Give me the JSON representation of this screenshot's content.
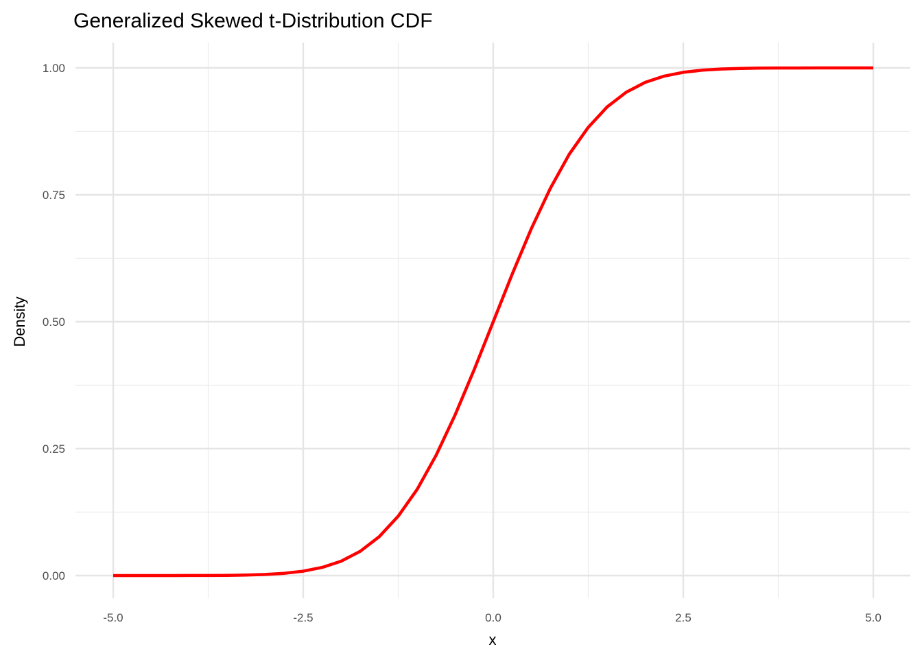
{
  "chart_data": {
    "type": "line",
    "title": "Generalized Skewed t-Distribution CDF",
    "xlabel": "x",
    "ylabel": "Density",
    "xlim": [
      -5,
      5
    ],
    "ylim": [
      0,
      1
    ],
    "x_ticks": [
      -5.0,
      -2.5,
      0.0,
      2.5,
      5.0
    ],
    "x_tick_labels": [
      "-5.0",
      "-2.5",
      "0.0",
      "2.5",
      "5.0"
    ],
    "y_ticks": [
      0,
      0.25,
      0.5,
      0.75,
      1.0
    ],
    "y_tick_labels": [
      "0.00",
      "0.25",
      "0.50",
      "0.75",
      "1.00"
    ],
    "grid": true,
    "series": [
      {
        "name": "CDF",
        "color": "#ff0000",
        "x": [
          -5,
          -4.75,
          -4.5,
          -4.25,
          -4,
          -3.75,
          -3.5,
          -3.25,
          -3,
          -2.75,
          -2.5,
          -2.25,
          -2,
          -1.75,
          -1.5,
          -1.25,
          -1,
          -0.75,
          -0.5,
          -0.25,
          0,
          0.25,
          0.5,
          0.75,
          1,
          1.25,
          1.5,
          1.75,
          2,
          2.25,
          2.5,
          2.75,
          3,
          3.25,
          3.5,
          3.75,
          4,
          4.25,
          4.5,
          4.75,
          5
        ],
        "y": [
          0,
          0,
          1e-05,
          3e-05,
          0.0001,
          0.0002,
          0.0004,
          0.001,
          0.0021,
          0.0044,
          0.0087,
          0.0161,
          0.0284,
          0.0478,
          0.0766,
          0.117,
          0.17,
          0.2375,
          0.317,
          0.406,
          0.5,
          0.594,
          0.683,
          0.7625,
          0.83,
          0.883,
          0.9234,
          0.9522,
          0.9716,
          0.9839,
          0.9913,
          0.9956,
          0.9979,
          0.999,
          0.9996,
          0.9998,
          0.9999,
          0.99997,
          0.99999,
          1,
          1
        ]
      }
    ]
  }
}
